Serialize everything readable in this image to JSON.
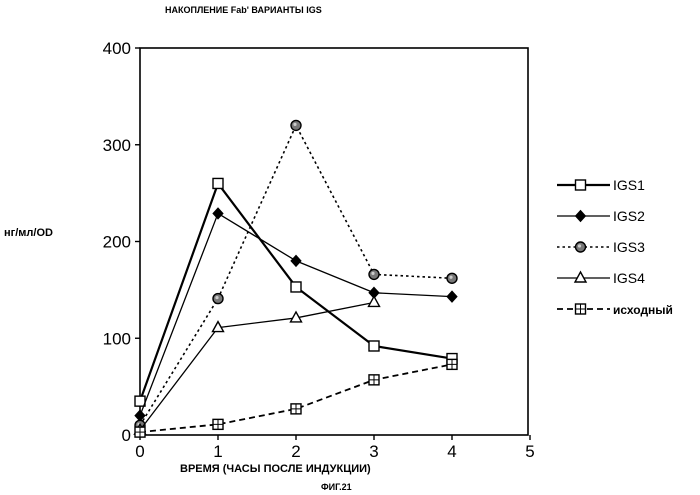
{
  "chart_data": {
    "type": "line",
    "title": "НАКОПЛЕНИЕ Fab' ВАРИАНТЫ IGS",
    "xlabel": "ВРЕМЯ (ЧАСЫ ПОСЛЕ ИНДУКЦИИ)",
    "ylabel": "нг/мл/OD",
    "caption": "ФИГ.21",
    "xlim": [
      0,
      5
    ],
    "ylim": [
      0,
      400
    ],
    "x_ticks": [
      "0",
      "1",
      "2",
      "3",
      "4",
      "5"
    ],
    "y_ticks": [
      "0",
      "100",
      "200",
      "300",
      "400"
    ],
    "grid": false,
    "legend_position": "right",
    "series": [
      {
        "name": "IGS1",
        "marker": "open-square",
        "line": "solid",
        "x": [
          0,
          1,
          2,
          3,
          4
        ],
        "y": [
          35,
          260,
          153,
          92,
          79
        ]
      },
      {
        "name": "IGS2",
        "marker": "filled-diamond",
        "line": "solid-thin",
        "x": [
          0,
          1,
          2,
          3,
          4
        ],
        "y": [
          20,
          229,
          180,
          147,
          143
        ]
      },
      {
        "name": "IGS3",
        "marker": "shaded-circle",
        "line": "dotted",
        "x": [
          0,
          1,
          2,
          3,
          4
        ],
        "y": [
          10,
          141,
          320,
          166,
          162
        ]
      },
      {
        "name": "IGS4",
        "marker": "open-triangle",
        "line": "solid-thin",
        "x": [
          0,
          1,
          2,
          3
        ],
        "y": [
          5,
          111,
          121,
          137
        ]
      },
      {
        "name": "исходный",
        "marker": "crossed-square",
        "line": "dashed",
        "x": [
          0,
          1,
          2,
          3,
          4
        ],
        "y": [
          3,
          11,
          27,
          57,
          73
        ]
      }
    ]
  }
}
